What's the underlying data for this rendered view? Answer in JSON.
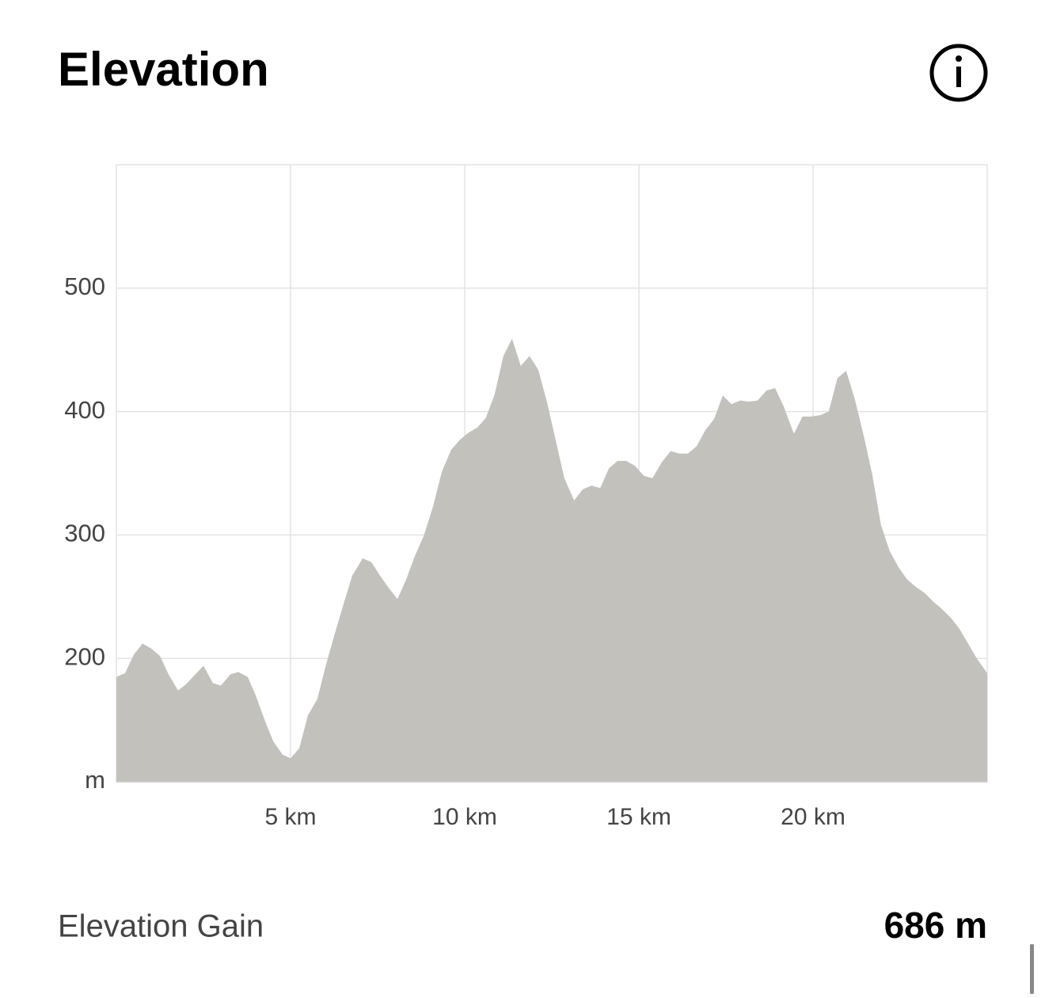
{
  "title": "Elevation",
  "chart_data": {
    "type": "area",
    "x": [
      0,
      0.25,
      0.5,
      0.75,
      1.0,
      1.25,
      1.5,
      1.77,
      2.0,
      2.5,
      2.77,
      3.0,
      3.27,
      3.5,
      3.77,
      4.0,
      4.27,
      4.5,
      4.77,
      5.0,
      5.25,
      5.5,
      5.77,
      6.0,
      6.27,
      6.5,
      6.77,
      7.07,
      7.32,
      7.57,
      7.82,
      8.07,
      8.32,
      8.57,
      8.82,
      9.09,
      9.34,
      9.61,
      9.86,
      10.11,
      10.36,
      10.61,
      10.86,
      11.11,
      11.36,
      11.61,
      11.86,
      12.11,
      12.36,
      12.61,
      12.86,
      13.14,
      13.39,
      13.64,
      13.89,
      14.14,
      14.39,
      14.64,
      14.89,
      15.14,
      15.39,
      15.66,
      15.91,
      16.16,
      16.41,
      16.66,
      16.91,
      17.16,
      17.41,
      17.66,
      17.91,
      18.16,
      18.41,
      18.66,
      18.91,
      19.16,
      19.45,
      19.7,
      19.95,
      20.2,
      20.45,
      20.7,
      20.95,
      21.2,
      21.45,
      21.7,
      21.95,
      22.2,
      22.45,
      22.7,
      22.95,
      23.2,
      23.45,
      23.7,
      23.95,
      24.2,
      24.45,
      24.7,
      25
    ],
    "values": [
      185,
      188,
      203,
      212,
      208,
      202,
      187,
      174,
      179,
      194,
      180,
      178,
      187,
      189,
      185,
      170,
      149,
      133,
      122,
      119,
      127,
      154,
      167,
      193,
      220,
      242,
      267,
      281,
      278,
      267,
      257,
      248,
      264,
      283,
      299,
      323,
      351,
      369,
      377,
      383,
      387,
      395,
      414,
      445,
      459,
      437,
      445,
      434,
      408,
      377,
      346,
      328,
      337,
      340,
      338,
      354,
      360,
      360,
      356,
      348,
      346,
      359,
      368,
      366,
      366,
      372,
      385,
      394,
      413,
      406,
      409,
      408,
      409,
      417,
      419,
      404,
      382,
      396,
      396,
      397,
      400,
      427,
      433,
      410,
      381,
      349,
      308,
      287,
      274,
      264,
      258,
      253,
      246,
      240,
      233,
      224,
      212,
      200,
      188
    ],
    "color": "#c2c1bc",
    "xlim": [
      0,
      25
    ],
    "xticks": [
      {
        "value": 5,
        "label": "5 km"
      },
      {
        "value": 10,
        "label": "10 km"
      },
      {
        "value": 15,
        "label": "15 km"
      },
      {
        "value": 20,
        "label": "20 km"
      }
    ],
    "ylim": [
      100,
      600
    ],
    "yticks": [
      {
        "value": 100,
        "label": "m"
      },
      200,
      300,
      400,
      500
    ],
    "grid": true
  },
  "summary": {
    "label": "Elevation Gain",
    "value": "686 m"
  }
}
